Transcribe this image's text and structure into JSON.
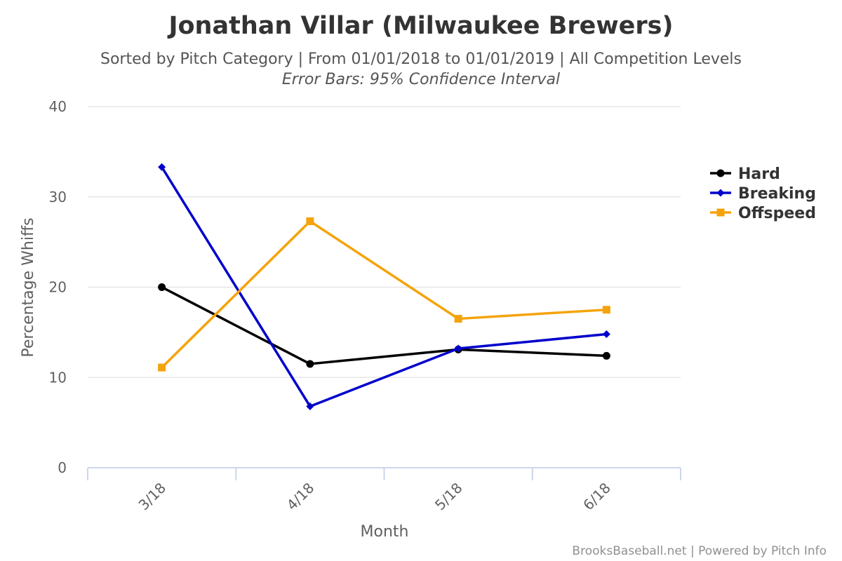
{
  "chart_data": {
    "type": "line",
    "title": "Jonathan Villar (Milwaukee Brewers)",
    "subtitle": "Sorted by Pitch Category | From 01/01/2018 to 01/01/2019 | All Competition Levels",
    "subtitle2": "Error Bars: 95% Confidence Interval",
    "xlabel": "Month",
    "ylabel": "Percentage Whiffs",
    "categories": [
      "3/18",
      "4/18",
      "5/18",
      "6/18"
    ],
    "ylim": [
      0,
      40
    ],
    "yticks": [
      0,
      10,
      20,
      30,
      40
    ],
    "grid": true,
    "legend_position": "right",
    "series": [
      {
        "name": "Hard",
        "color": "#000000",
        "marker": "circle",
        "values": [
          20.0,
          11.5,
          13.1,
          12.4
        ]
      },
      {
        "name": "Breaking",
        "color": "#0000cc",
        "marker": "diamond",
        "values": [
          33.3,
          6.8,
          13.2,
          14.8
        ]
      },
      {
        "name": "Offspeed",
        "color": "#f5a30a",
        "marker": "square",
        "values": [
          11.1,
          27.3,
          16.5,
          17.5
        ]
      }
    ],
    "credits": "BrooksBaseball.net | Powered by Pitch Info"
  }
}
